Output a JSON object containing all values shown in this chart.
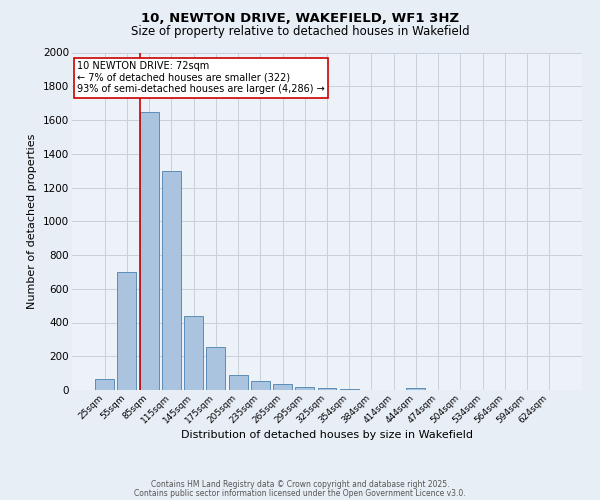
{
  "title_line1": "10, NEWTON DRIVE, WAKEFIELD, WF1 3HZ",
  "title_line2": "Size of property relative to detached houses in Wakefield",
  "xlabel": "Distribution of detached houses by size in Wakefield",
  "ylabel": "Number of detached properties",
  "categories": [
    "25sqm",
    "55sqm",
    "85sqm",
    "115sqm",
    "145sqm",
    "175sqm",
    "205sqm",
    "235sqm",
    "265sqm",
    "295sqm",
    "325sqm",
    "354sqm",
    "384sqm",
    "414sqm",
    "444sqm",
    "474sqm",
    "504sqm",
    "534sqm",
    "564sqm",
    "594sqm",
    "624sqm"
  ],
  "values": [
    65,
    700,
    1650,
    1300,
    440,
    255,
    90,
    55,
    35,
    20,
    10,
    5,
    0,
    0,
    10,
    0,
    0,
    0,
    0,
    0,
    0
  ],
  "bar_color": "#aac4e0",
  "bar_edge_color": "#5b8db8",
  "ylim": [
    0,
    2000
  ],
  "yticks": [
    0,
    200,
    400,
    600,
    800,
    1000,
    1200,
    1400,
    1600,
    1800,
    2000
  ],
  "vline_color": "#cc0000",
  "annotation_box_text": "10 NEWTON DRIVE: 72sqm\n← 7% of detached houses are smaller (322)\n93% of semi-detached houses are larger (4,286) →",
  "footer_line1": "Contains HM Land Registry data © Crown copyright and database right 2025.",
  "footer_line2": "Contains public sector information licensed under the Open Government Licence v3.0.",
  "bg_color": "#e8eef5",
  "plot_bg_color": "#edf2f8",
  "grid_color": "#c8d0dc"
}
